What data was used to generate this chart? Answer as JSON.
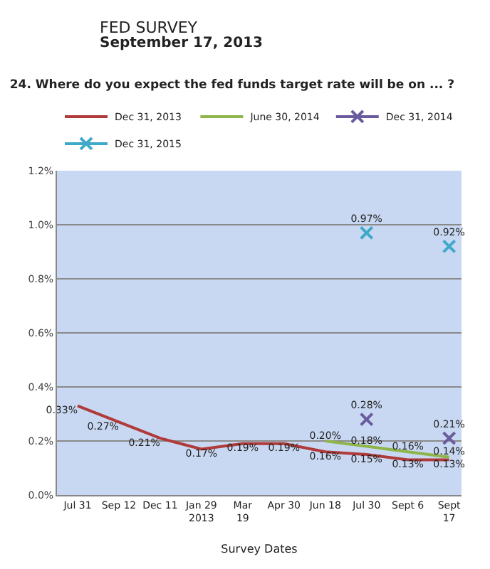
{
  "chart_data": {
    "type": "line",
    "title": "24. Where do you expect the fed funds target rate will be on ... ?",
    "annotations": [
      "FED SURVEY",
      "September 17, 2013"
    ],
    "xlabel": "Survey Dates",
    "categories": [
      "Jul 31",
      "Sep 12",
      "Dec 11",
      "Jan 29\n2013",
      "Mar\n19",
      "Apr 30",
      "Jun 18",
      "Jul 30",
      "Sept 6",
      "Sept\n17"
    ],
    "series": [
      {
        "name": "Dec 31, 2013",
        "color": "#b03a3a",
        "marker": "none",
        "values": [
          0.33,
          0.27,
          0.21,
          0.17,
          0.19,
          0.19,
          0.16,
          0.15,
          0.13,
          0.13
        ],
        "value_labels": [
          "0.33%",
          "0.27%",
          "0.21%",
          "0.17%",
          "0.19%",
          "0.19%",
          "0.16%",
          "0.15%",
          "0.13%",
          "0.13%"
        ]
      },
      {
        "name": "June 30, 2014",
        "color": "#8db54a",
        "marker": "none",
        "values": [
          null,
          null,
          null,
          null,
          null,
          null,
          0.2,
          0.18,
          0.16,
          0.14
        ],
        "value_labels": [
          null,
          null,
          null,
          null,
          null,
          null,
          "0.20%",
          "0.18%",
          "0.16%",
          "0.14%"
        ]
      },
      {
        "name": "Dec 31, 2014",
        "color": "#6a5a9e",
        "marker": "cross",
        "values": [
          null,
          null,
          null,
          null,
          null,
          null,
          null,
          0.28,
          null,
          0.21
        ],
        "value_labels": [
          null,
          null,
          null,
          null,
          null,
          null,
          null,
          "0.28%",
          null,
          "0.21%"
        ]
      },
      {
        "name": "Dec 31, 2015",
        "color": "#3fa9c9",
        "marker": "cross",
        "values": [
          null,
          null,
          null,
          null,
          null,
          null,
          null,
          0.97,
          null,
          0.92
        ],
        "value_labels": [
          null,
          null,
          null,
          null,
          null,
          null,
          null,
          "0.97%",
          null,
          "0.92%"
        ]
      }
    ],
    "ylim": [
      0,
      1.2
    ],
    "yticks": [
      {
        "value": 0,
        "label": "0.0%"
      },
      {
        "value": 0.2,
        "label": "0.2%"
      },
      {
        "value": 0.4,
        "label": "0.4%"
      },
      {
        "value": 0.6,
        "label": "0.6%"
      },
      {
        "value": 0.8,
        "label": "0.8%"
      },
      {
        "value": 1.0,
        "label": "1.0%"
      },
      {
        "value": 1.2,
        "label": "1.2%"
      }
    ],
    "grid": "y",
    "legend": "top"
  }
}
